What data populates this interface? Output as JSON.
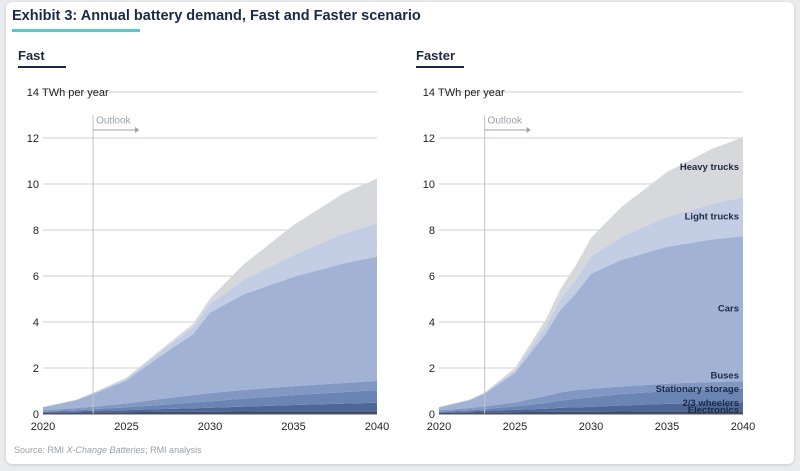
{
  "header": {
    "title": "Exhibit 3: Annual battery demand, Fast and Faster scenario",
    "source_prefix": "Source: RMI ",
    "source_italic": "X-Change Batteries",
    "source_suffix": "; RMI analysis"
  },
  "colors": {
    "Electronics": "#3a4a6e",
    "2/3 wheelers": "#4f6796",
    "Stationary storage": "#6a84b4",
    "Buses": "#8298c3",
    "Cars": "#a2b2d4",
    "Light trucks": "#c3cde4",
    "Heavy trucks": "#d6d8db",
    "accent": "#5cc8c9",
    "title": "#1b2a44"
  },
  "chart_data": [
    {
      "type": "area",
      "stacked": true,
      "title": "Fast",
      "ylabel": "TWh per year",
      "annotation": "Outlook",
      "outlook_start": 2023,
      "x": [
        2020,
        2022,
        2023,
        2025,
        2027,
        2029,
        2030,
        2032,
        2035,
        2038,
        2040
      ],
      "ylim": [
        0,
        14
      ],
      "yticks": [
        0,
        2,
        4,
        6,
        8,
        10,
        12,
        14
      ],
      "xticks": [
        2020,
        2025,
        2030,
        2035,
        2040
      ],
      "grid": true,
      "series": [
        {
          "name": "Electronics",
          "values": [
            0.05,
            0.06,
            0.07,
            0.08,
            0.09,
            0.1,
            0.1,
            0.11,
            0.12,
            0.12,
            0.12
          ]
        },
        {
          "name": "2/3 wheelers",
          "values": [
            0.04,
            0.06,
            0.07,
            0.09,
            0.12,
            0.15,
            0.17,
            0.21,
            0.27,
            0.33,
            0.37
          ]
        },
        {
          "name": "Stationary storage",
          "values": [
            0.03,
            0.05,
            0.07,
            0.12,
            0.18,
            0.25,
            0.28,
            0.35,
            0.43,
            0.5,
            0.55
          ]
        },
        {
          "name": "Buses",
          "values": [
            0.05,
            0.09,
            0.11,
            0.17,
            0.26,
            0.33,
            0.36,
            0.38,
            0.39,
            0.4,
            0.4
          ]
        },
        {
          "name": "Cars",
          "values": [
            0.13,
            0.34,
            0.55,
            1.0,
            1.85,
            2.65,
            3.5,
            4.15,
            4.75,
            5.2,
            5.4
          ]
        },
        {
          "name": "Light trucks",
          "values": [
            0.0,
            0.02,
            0.04,
            0.08,
            0.18,
            0.3,
            0.38,
            0.63,
            0.95,
            1.3,
            1.45
          ]
        },
        {
          "name": "Heavy trucks",
          "values": [
            0.0,
            0.01,
            0.02,
            0.04,
            0.08,
            0.15,
            0.23,
            0.67,
            1.3,
            1.75,
            1.95
          ]
        }
      ]
    },
    {
      "type": "area",
      "stacked": true,
      "title": "Faster",
      "ylabel": "TWh per year",
      "annotation": "Outlook",
      "outlook_start": 2023,
      "x": [
        2020,
        2022,
        2023,
        2025,
        2027,
        2028,
        2029,
        2030,
        2032,
        2035,
        2038,
        2040
      ],
      "ylim": [
        0,
        14
      ],
      "yticks": [
        0,
        2,
        4,
        6,
        8,
        10,
        12,
        14
      ],
      "xticks": [
        2020,
        2025,
        2030,
        2035,
        2040
      ],
      "grid": true,
      "series": [
        {
          "name": "Electronics",
          "values": [
            0.05,
            0.06,
            0.07,
            0.08,
            0.09,
            0.1,
            0.1,
            0.1,
            0.11,
            0.12,
            0.12,
            0.12
          ]
        },
        {
          "name": "2/3 wheelers",
          "values": [
            0.04,
            0.06,
            0.07,
            0.1,
            0.14,
            0.17,
            0.19,
            0.21,
            0.26,
            0.32,
            0.36,
            0.38
          ]
        },
        {
          "name": "Stationary storage",
          "values": [
            0.03,
            0.05,
            0.08,
            0.15,
            0.25,
            0.31,
            0.37,
            0.42,
            0.5,
            0.55,
            0.58,
            0.6
          ]
        },
        {
          "name": "Buses",
          "values": [
            0.05,
            0.09,
            0.11,
            0.17,
            0.3,
            0.36,
            0.38,
            0.37,
            0.33,
            0.33,
            0.33,
            0.33
          ]
        },
        {
          "name": "Cars",
          "values": [
            0.13,
            0.34,
            0.55,
            1.3,
            2.7,
            3.6,
            4.2,
            5.0,
            5.5,
            5.95,
            6.2,
            6.3
          ]
        },
        {
          "name": "Light trucks",
          "values": [
            0.0,
            0.02,
            0.04,
            0.1,
            0.3,
            0.45,
            0.6,
            0.75,
            1.0,
            1.3,
            1.55,
            1.7
          ]
        },
        {
          "name": "Heavy trucks",
          "values": [
            0.0,
            0.01,
            0.02,
            0.1,
            0.3,
            0.45,
            0.62,
            0.8,
            1.3,
            1.95,
            2.4,
            2.6
          ]
        }
      ]
    }
  ]
}
